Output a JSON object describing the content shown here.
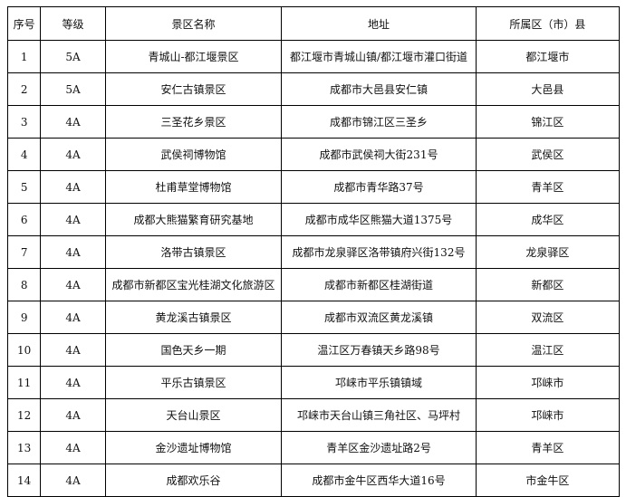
{
  "headers": [
    "序号",
    "等级",
    "景区名称",
    "地址",
    "所属区（市）县"
  ],
  "rows": [
    [
      "1",
      "5A",
      "青城山-都江堰景区",
      "都江堰市青城山镇/都江堰市灌口街道",
      "都江堰市"
    ],
    [
      "2",
      "5A",
      "安仁古镇景区",
      "成都市大邑县安仁镇",
      "大邑县"
    ],
    [
      "3",
      "4A",
      "三圣花乡景区",
      "成都市锦江区三圣乡",
      "锦江区"
    ],
    [
      "4",
      "4A",
      "武侯祠博物馆",
      "成都市武侯祠大街231号",
      "武侯区"
    ],
    [
      "5",
      "4A",
      "杜甫草堂博物馆",
      "成都市青华路37号",
      "青羊区"
    ],
    [
      "6",
      "4A",
      "成都大熊猫繁育研究基地",
      "成都市成华区熊猫大道1375号",
      "成华区"
    ],
    [
      "7",
      "4A",
      "洛带古镇景区",
      "成都市龙泉驿区洛带镇府兴街132号",
      "龙泉驿区"
    ],
    [
      "8",
      "4A",
      "成都市新都区宝光桂湖文化旅游区",
      "成都市新都区桂湖街道",
      "新都区"
    ],
    [
      "9",
      "4A",
      "黄龙溪古镇景区",
      "成都市双流区黄龙溪镇",
      "双流区"
    ],
    [
      "10",
      "4A",
      "国色天乡一期",
      "温江区万春镇天乡路98号",
      "温江区"
    ],
    [
      "11",
      "4A",
      "平乐古镇景区",
      "邛崃市平乐镇镇域",
      "邛崃市"
    ],
    [
      "12",
      "4A",
      "天台山景区",
      "邛崃市天台山镇三角社区、马坪村",
      "邛崃市"
    ],
    [
      "13",
      "4A",
      "金沙遗址博物馆",
      "青羊区金沙遗址路2号",
      "青羊区"
    ],
    [
      "14",
      "4A",
      "成都欢乐谷",
      "成都市金牛区西华大道16号",
      "市金牛区"
    ]
  ]
}
